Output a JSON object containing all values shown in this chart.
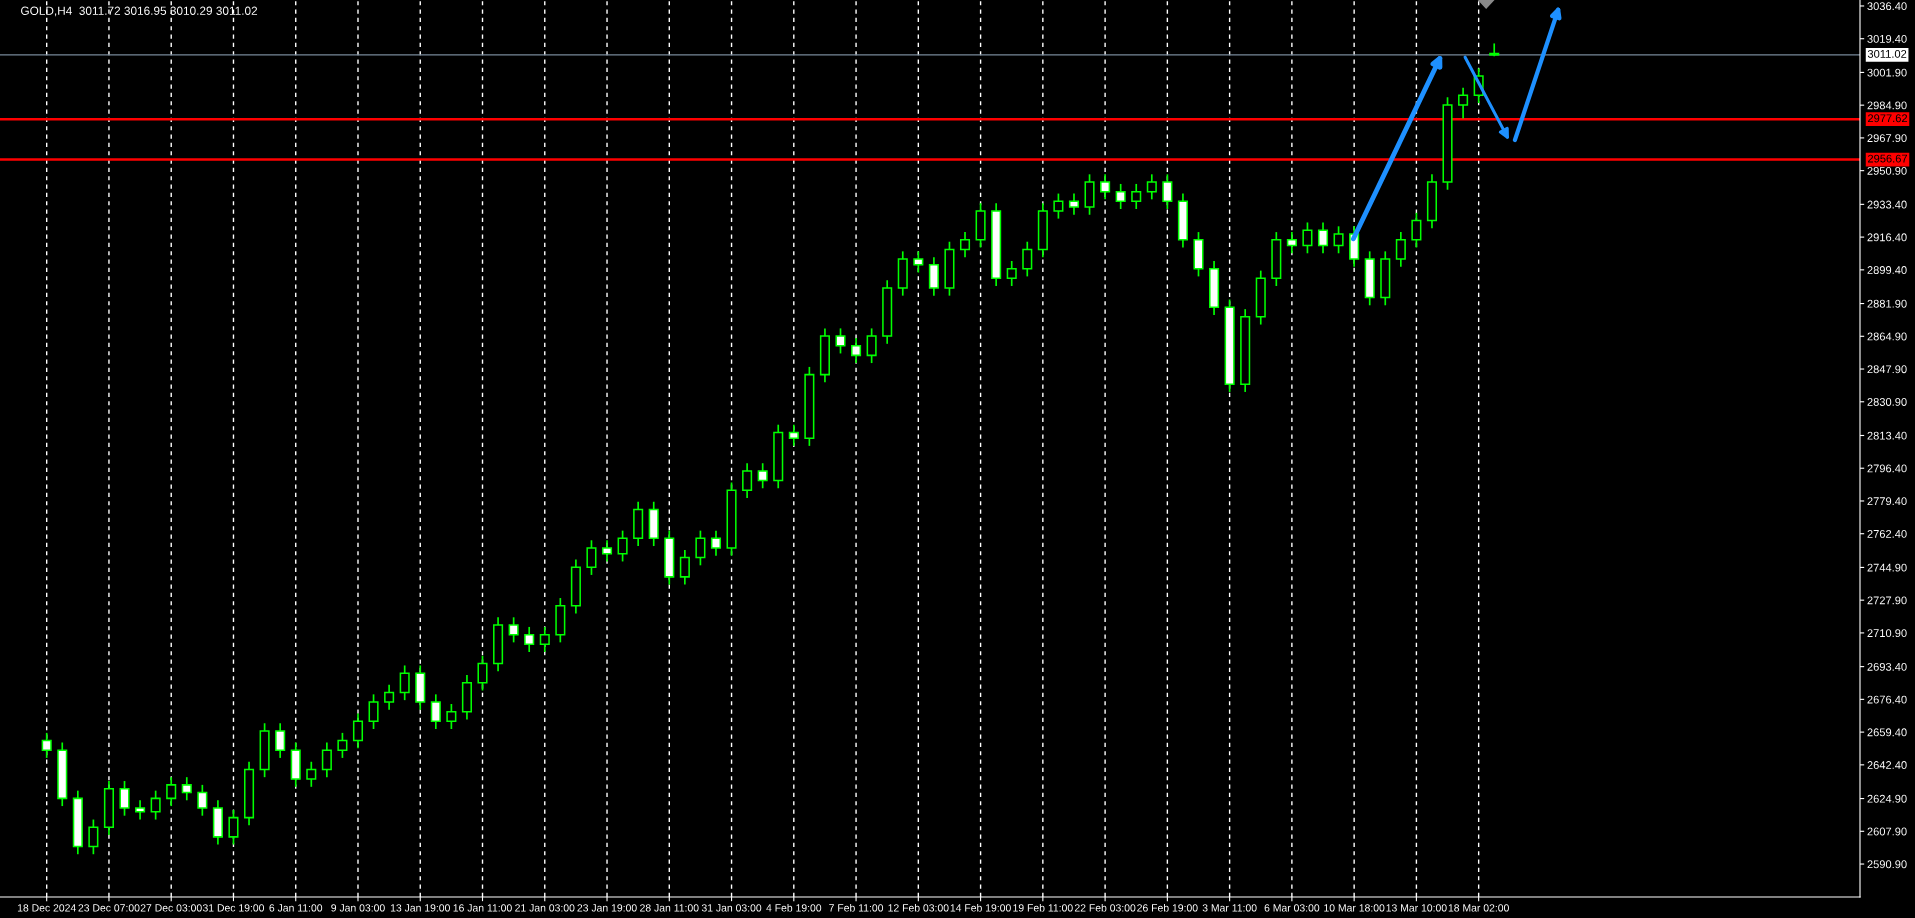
{
  "chart_data": {
    "type": "candlestick",
    "title": "GOLD,H4  3011.72 3016.95 3010.29 3011.02",
    "color": "#00ff00",
    "categories": [
      "18 Dec 2024",
      null,
      null,
      null,
      "23 Dec 07:00",
      null,
      null,
      null,
      "27 Dec 03:00",
      null,
      null,
      null,
      "31 Dec 19:00",
      null,
      null,
      null,
      "6 Jan 11:00",
      null,
      null,
      null,
      "9 Jan 03:00",
      null,
      null,
      null,
      "13 Jan 19:00",
      null,
      null,
      null,
      "16 Jan 11:00",
      null,
      null,
      null,
      "21 Jan 03:00",
      null,
      null,
      null,
      "23 Jan 19:00",
      null,
      null,
      null,
      "28 Jan 11:00",
      null,
      null,
      null,
      "31 Jan 03:00",
      null,
      null,
      null,
      "4 Feb 19:00",
      null,
      null,
      null,
      "7 Feb 11:00",
      null,
      null,
      null,
      "12 Feb 03:00",
      null,
      null,
      null,
      "14 Feb 19:00",
      null,
      null,
      null,
      "19 Feb 11:00",
      null,
      null,
      null,
      "22 Feb 03:00",
      null,
      null,
      null,
      "26 Feb 19:00",
      null,
      null,
      null,
      "3 Mar 11:00",
      null,
      null,
      null,
      "6 Mar 03:00",
      null,
      null,
      null,
      "10 Mar 18:00",
      null,
      null,
      null,
      "13 Mar 10:00",
      null,
      null,
      null,
      "18 Mar 02:00",
      null,
      null,
      null,
      null,
      null,
      null,
      null,
      null,
      null,
      null,
      null,
      null,
      null,
      null,
      null,
      null,
      null,
      null,
      null,
      null,
      null,
      null,
      null,
      null
    ],
    "ohlc": [
      [
        2655,
        2659,
        2646,
        2650
      ],
      [
        2650,
        2654,
        2621,
        2625
      ],
      [
        2625,
        2629,
        2596,
        2600
      ],
      [
        2600,
        2614,
        2596,
        2610
      ],
      [
        2610,
        2634,
        2606,
        2630
      ],
      [
        2630,
        2634,
        2616,
        2620
      ],
      [
        2620,
        2624,
        2614,
        2618
      ],
      [
        2618,
        2629,
        2614,
        2625
      ],
      [
        2625,
        2636,
        2621,
        2632
      ],
      [
        2632,
        2636,
        2624,
        2628
      ],
      [
        2628,
        2632,
        2616,
        2620
      ],
      [
        2620,
        2624,
        2601,
        2605
      ],
      [
        2605,
        2619,
        2601,
        2615
      ],
      [
        2615,
        2644,
        2611,
        2640
      ],
      [
        2640,
        2664,
        2636,
        2660
      ],
      [
        2660,
        2664,
        2646,
        2650
      ],
      [
        2650,
        2654,
        2631,
        2635
      ],
      [
        2635,
        2644,
        2631,
        2640
      ],
      [
        2640,
        2654,
        2636,
        2650
      ],
      [
        2650,
        2659,
        2646,
        2655
      ],
      [
        2655,
        2669,
        2651,
        2665
      ],
      [
        2665,
        2679,
        2661,
        2675
      ],
      [
        2675,
        2684,
        2671,
        2680
      ],
      [
        2680,
        2694,
        2676,
        2690
      ],
      [
        2690,
        2694,
        2671,
        2675
      ],
      [
        2675,
        2679,
        2661,
        2665
      ],
      [
        2665,
        2674,
        2661,
        2670
      ],
      [
        2670,
        2689,
        2666,
        2685
      ],
      [
        2685,
        2699,
        2681,
        2695
      ],
      [
        2695,
        2719,
        2691,
        2715
      ],
      [
        2715,
        2719,
        2706,
        2710
      ],
      [
        2710,
        2714,
        2701,
        2705
      ],
      [
        2705,
        2714,
        2701,
        2710
      ],
      [
        2710,
        2729,
        2706,
        2725
      ],
      [
        2725,
        2749,
        2721,
        2745
      ],
      [
        2745,
        2759,
        2741,
        2755
      ],
      [
        2755,
        2759,
        2748,
        2752
      ],
      [
        2752,
        2764,
        2748,
        2760
      ],
      [
        2760,
        2779,
        2756,
        2775
      ],
      [
        2775,
        2779,
        2756,
        2760
      ],
      [
        2760,
        2764,
        2736,
        2740
      ],
      [
        2740,
        2754,
        2736,
        2750
      ],
      [
        2750,
        2764,
        2746,
        2760
      ],
      [
        2760,
        2764,
        2751,
        2755
      ],
      [
        2755,
        2789,
        2751,
        2785
      ],
      [
        2785,
        2799,
        2781,
        2795
      ],
      [
        2795,
        2799,
        2786,
        2790
      ],
      [
        2790,
        2819,
        2786,
        2815
      ],
      [
        2815,
        2819,
        2808,
        2812
      ],
      [
        2812,
        2849,
        2808,
        2845
      ],
      [
        2845,
        2869,
        2841,
        2865
      ],
      [
        2865,
        2869,
        2856,
        2860
      ],
      [
        2860,
        2864,
        2851,
        2855
      ],
      [
        2855,
        2869,
        2851,
        2865
      ],
      [
        2865,
        2894,
        2861,
        2890
      ],
      [
        2890,
        2909,
        2886,
        2905
      ],
      [
        2905,
        2909,
        2898,
        2902
      ],
      [
        2902,
        2906,
        2886,
        2890
      ],
      [
        2890,
        2914,
        2886,
        2910
      ],
      [
        2910,
        2919,
        2906,
        2915
      ],
      [
        2915,
        2934,
        2911,
        2930
      ],
      [
        2930,
        2934,
        2891,
        2895
      ],
      [
        2895,
        2904,
        2891,
        2900
      ],
      [
        2900,
        2914,
        2896,
        2910
      ],
      [
        2910,
        2934,
        2906,
        2930
      ],
      [
        2930,
        2939,
        2926,
        2935
      ],
      [
        2935,
        2939,
        2928,
        2932
      ],
      [
        2932,
        2949,
        2928,
        2945
      ],
      [
        2945,
        2949,
        2936,
        2940
      ],
      [
        2940,
        2944,
        2931,
        2935
      ],
      [
        2935,
        2944,
        2931,
        2940
      ],
      [
        2940,
        2949,
        2936,
        2945
      ],
      [
        2945,
        2949,
        2931,
        2935
      ],
      [
        2935,
        2939,
        2911,
        2915
      ],
      [
        2915,
        2919,
        2896,
        2900
      ],
      [
        2900,
        2904,
        2876,
        2880
      ],
      [
        2880,
        2884,
        2836,
        2840
      ],
      [
        2840,
        2879,
        2836,
        2875
      ],
      [
        2875,
        2899,
        2871,
        2895
      ],
      [
        2895,
        2919,
        2891,
        2915
      ],
      [
        2915,
        2919,
        2908,
        2912
      ],
      [
        2912,
        2924,
        2908,
        2920
      ],
      [
        2920,
        2924,
        2908,
        2912
      ],
      [
        2912,
        2922,
        2908,
        2918
      ],
      [
        2918,
        2922,
        2901,
        2905
      ],
      [
        2905,
        2909,
        2881,
        2885
      ],
      [
        2885,
        2909,
        2881,
        2905
      ],
      [
        2905,
        2919,
        2901,
        2915
      ],
      [
        2915,
        2929,
        2911,
        2925
      ],
      [
        2925,
        2949,
        2921,
        2945
      ],
      [
        2945,
        2989,
        2941,
        2985
      ],
      [
        2985,
        2994,
        2978,
        2990
      ],
      [
        2990,
        3004,
        2986,
        3000
      ],
      [
        3011.72,
        3016.95,
        3010.29,
        3011.02
      ],
      null,
      null,
      null,
      null,
      null,
      null,
      null,
      null,
      null,
      null,
      null,
      null,
      null,
      null,
      null,
      null,
      null,
      null,
      null,
      null,
      null,
      null,
      null
    ],
    "ylim": [
      2573.8,
      3039.5
    ],
    "yticks": [
      {
        "value": 2590.9,
        "label": "2590.90"
      },
      {
        "value": 2607.9,
        "label": "2607.90"
      },
      {
        "value": 2624.9,
        "label": "2624.90"
      },
      {
        "value": 2642.4,
        "label": "2642.40"
      },
      {
        "value": 2659.4,
        "label": "2659.40"
      },
      {
        "value": 2676.4,
        "label": "2676.40"
      },
      {
        "value": 2693.4,
        "label": "2693.40"
      },
      {
        "value": 2710.9,
        "label": "2710.90"
      },
      {
        "value": 2727.9,
        "label": "2727.90"
      },
      {
        "value": 2744.9,
        "label": "2744.90"
      },
      {
        "value": 2762.4,
        "label": "2762.40"
      },
      {
        "value": 2779.4,
        "label": "2779.40"
      },
      {
        "value": 2796.4,
        "label": "2796.40"
      },
      {
        "value": 2813.4,
        "label": "2813.40"
      },
      {
        "value": 2830.9,
        "label": "2830.90"
      },
      {
        "value": 2847.9,
        "label": "2847.90"
      },
      {
        "value": 2864.9,
        "label": "2864.90"
      },
      {
        "value": 2881.9,
        "label": "2881.90"
      },
      {
        "value": 2899.4,
        "label": "2899.40"
      },
      {
        "value": 2916.4,
        "label": "2916.40"
      },
      {
        "value": 2933.4,
        "label": "2933.40"
      },
      {
        "value": 2950.9,
        "label": "2950.90"
      },
      {
        "value": 2967.9,
        "label": "2967.90"
      },
      {
        "value": 2984.9,
        "label": "2984.90"
      },
      {
        "value": 3001.9,
        "label": "3001.90"
      },
      {
        "value": 3019.4,
        "label": "3019.40"
      },
      {
        "value": 3036.4,
        "label": "3036.40"
      }
    ],
    "ref_lines": [
      {
        "axis": "y",
        "value": 3011.02,
        "label": "3011.02",
        "color": "#778899"
      },
      {
        "axis": "y",
        "value": 2977.62,
        "label": "2977.62",
        "color": "#ff0000"
      },
      {
        "axis": "y",
        "value": 2956.67,
        "label": "2956.67",
        "color": "#ff0000"
      }
    ],
    "grid": "x"
  }
}
